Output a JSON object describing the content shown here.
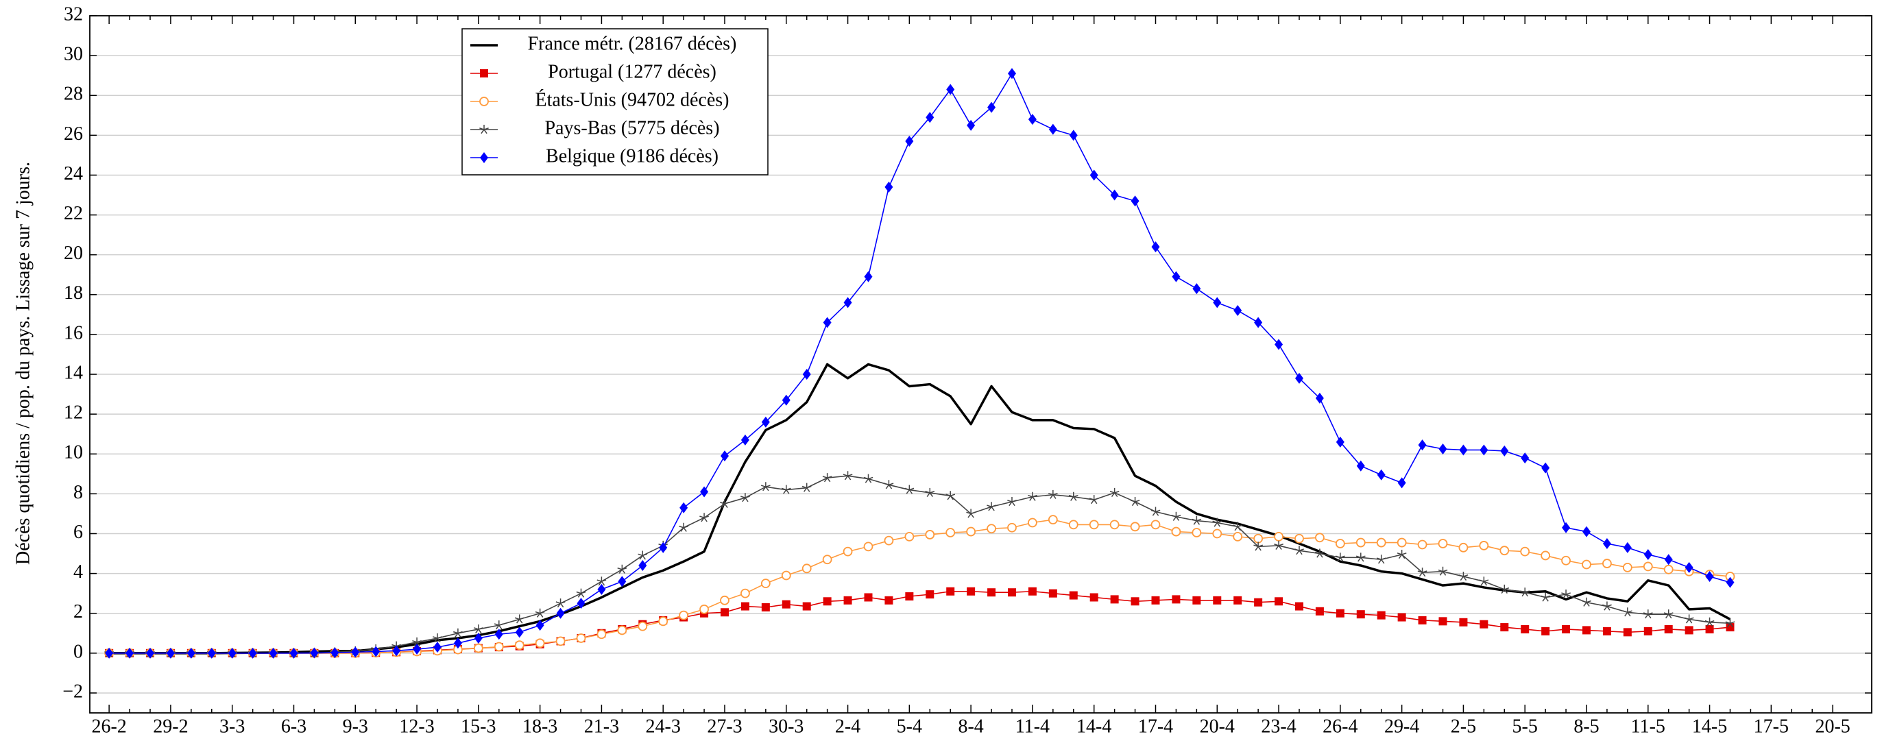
{
  "chart_data": {
    "type": "line",
    "y_label": "Décès quotidiens / pop. du pays. Lissage sur 7 jours.",
    "categories": [
      "26-2",
      null,
      null,
      "29-2",
      null,
      null,
      "3-3",
      null,
      null,
      "6-3",
      null,
      null,
      "9-3",
      null,
      null,
      "12-3",
      null,
      null,
      "15-3",
      null,
      null,
      "18-3",
      null,
      null,
      "21-3",
      null,
      null,
      "24-3",
      null,
      null,
      "27-3",
      null,
      null,
      "30-3",
      null,
      null,
      "2-4",
      null,
      null,
      "5-4",
      null,
      null,
      "8-4",
      null,
      null,
      "11-4",
      null,
      null,
      "14-4",
      null,
      null,
      "17-4",
      null,
      null,
      "20-4",
      null,
      null,
      "23-4",
      null,
      null,
      "26-4",
      null,
      null,
      "29-4",
      null,
      null,
      "2-5",
      null,
      null,
      "5-5",
      null,
      null,
      "8-5",
      null,
      null,
      "11-5",
      null,
      null,
      "14-5",
      null,
      null,
      "17-5",
      null,
      null,
      "20-5"
    ],
    "ylim": [
      -3,
      32
    ],
    "yticks": [
      {
        "value": -2,
        "label": "−2"
      },
      0,
      2,
      4,
      6,
      8,
      10,
      12,
      14,
      16,
      18,
      20,
      22,
      24,
      26,
      28,
      30,
      32
    ],
    "grid": true,
    "legend_position": "upper left",
    "series": [
      {
        "name": "France métr. (28167 décès)",
        "color": "#000000",
        "marker": "none",
        "values": [
          0,
          0,
          0,
          0,
          0,
          0,
          0.01,
          0.02,
          0.03,
          0.05,
          0.08,
          0.1,
          0.1,
          0.2,
          0.3,
          0.45,
          0.65,
          0.75,
          0.9,
          1.1,
          1.35,
          1.6,
          1.95,
          2.35,
          2.8,
          3.3,
          3.8,
          4.15,
          4.6,
          5.1,
          7.6,
          9.6,
          11.2,
          11.7,
          12.6,
          14.5,
          13.8,
          14.5,
          14.2,
          13.4,
          13.5,
          12.9,
          11.5,
          13.4,
          12.1,
          11.7,
          11.7,
          11.3,
          11.25,
          10.8,
          8.9,
          8.4,
          7.6,
          7.0,
          6.7,
          6.5,
          6.2,
          5.9,
          5.5,
          5.1,
          4.6,
          4.4,
          4.1,
          4.0,
          3.7,
          3.4,
          3.5,
          3.3,
          3.15,
          3.05,
          3.1,
          2.7,
          3.05,
          2.75,
          2.6,
          3.65,
          3.4,
          2.2,
          2.25,
          1.7,
          null,
          null,
          null,
          null,
          null
        ]
      },
      {
        "name": "Portugal (1277 décès)",
        "color": "#e00000",
        "marker": "square",
        "values": [
          0,
          0,
          0,
          0,
          0,
          0,
          0,
          0,
          0,
          0,
          0,
          0,
          0,
          0.02,
          0.05,
          0.1,
          0.15,
          0.2,
          0.25,
          0.3,
          0.35,
          0.45,
          0.6,
          0.75,
          1.0,
          1.2,
          1.45,
          1.65,
          1.8,
          2.0,
          2.05,
          2.35,
          2.3,
          2.45,
          2.35,
          2.6,
          2.65,
          2.8,
          2.65,
          2.85,
          2.95,
          3.1,
          3.1,
          3.05,
          3.05,
          3.1,
          3.0,
          2.9,
          2.8,
          2.7,
          2.6,
          2.65,
          2.7,
          2.65,
          2.65,
          2.65,
          2.55,
          2.6,
          2.35,
          2.1,
          2.0,
          1.95,
          1.9,
          1.8,
          1.65,
          1.6,
          1.55,
          1.45,
          1.3,
          1.2,
          1.1,
          1.2,
          1.15,
          1.1,
          1.05,
          1.1,
          1.2,
          1.15,
          1.2,
          1.3,
          null,
          null,
          null,
          null,
          null
        ]
      },
      {
        "name": "États-Unis (94702 décès)",
        "color": "#ff9a3c",
        "marker": "circle",
        "values": [
          0,
          0,
          0,
          0,
          0,
          0,
          0,
          0,
          0,
          0,
          0,
          0,
          0,
          0.02,
          0.05,
          0.08,
          0.12,
          0.18,
          0.25,
          0.32,
          0.4,
          0.5,
          0.6,
          0.75,
          0.95,
          1.15,
          1.35,
          1.6,
          1.9,
          2.2,
          2.65,
          3.0,
          3.5,
          3.9,
          4.25,
          4.7,
          5.1,
          5.35,
          5.65,
          5.85,
          5.95,
          6.05,
          6.1,
          6.25,
          6.3,
          6.55,
          6.7,
          6.45,
          6.45,
          6.45,
          6.35,
          6.45,
          6.1,
          6.05,
          6.0,
          5.85,
          5.75,
          5.85,
          5.75,
          5.8,
          5.5,
          5.55,
          5.55,
          5.55,
          5.45,
          5.5,
          5.3,
          5.4,
          5.15,
          5.1,
          4.9,
          4.65,
          4.45,
          4.5,
          4.3,
          4.35,
          4.2,
          4.1,
          3.95,
          3.85,
          null,
          null,
          null,
          null,
          null
        ]
      },
      {
        "name": "Pays-Bas (5775 décès)",
        "color": "#444444",
        "marker": "star",
        "values": [
          0,
          0,
          0,
          0,
          0,
          0,
          0,
          0,
          0,
          0,
          0,
          0.05,
          0.1,
          0.2,
          0.35,
          0.55,
          0.75,
          1.0,
          1.2,
          1.4,
          1.7,
          2.0,
          2.5,
          3.0,
          3.6,
          4.2,
          4.9,
          5.4,
          6.3,
          6.8,
          7.5,
          7.8,
          8.35,
          8.2,
          8.3,
          8.8,
          8.9,
          8.75,
          8.45,
          8.2,
          8.05,
          7.9,
          7.0,
          7.35,
          7.6,
          7.85,
          7.95,
          7.85,
          7.7,
          8.05,
          7.6,
          7.1,
          6.85,
          6.65,
          6.55,
          6.35,
          5.35,
          5.4,
          5.15,
          5.0,
          4.8,
          4.8,
          4.7,
          4.95,
          4.05,
          4.1,
          3.85,
          3.6,
          3.2,
          3.05,
          2.8,
          2.95,
          2.55,
          2.35,
          2.05,
          1.95,
          1.95,
          1.7,
          1.55,
          1.5,
          null,
          null,
          null,
          null,
          null
        ]
      },
      {
        "name": "Belgique (9186 décès)",
        "color": "#0000ff",
        "marker": "diamond",
        "values": [
          0,
          0,
          0,
          0,
          0,
          0,
          0,
          0,
          0,
          0,
          0.01,
          0.02,
          0.05,
          0.08,
          0.12,
          0.2,
          0.3,
          0.5,
          0.75,
          0.95,
          1.05,
          1.4,
          2.0,
          2.5,
          3.2,
          3.6,
          4.4,
          5.3,
          7.3,
          8.1,
          9.9,
          10.7,
          11.6,
          12.7,
          14.0,
          16.6,
          17.6,
          18.9,
          23.4,
          25.7,
          26.9,
          28.3,
          26.5,
          27.4,
          29.1,
          26.8,
          26.3,
          26.0,
          24.0,
          23.0,
          22.7,
          20.4,
          18.9,
          18.3,
          17.6,
          17.2,
          16.6,
          15.5,
          13.8,
          12.8,
          10.6,
          9.4,
          8.95,
          8.55,
          10.45,
          10.25,
          10.2,
          10.2,
          10.15,
          9.8,
          9.3,
          6.3,
          6.1,
          5.5,
          5.3,
          4.95,
          4.7,
          4.3,
          3.85,
          3.55,
          null,
          null,
          null,
          null,
          null
        ]
      }
    ]
  }
}
